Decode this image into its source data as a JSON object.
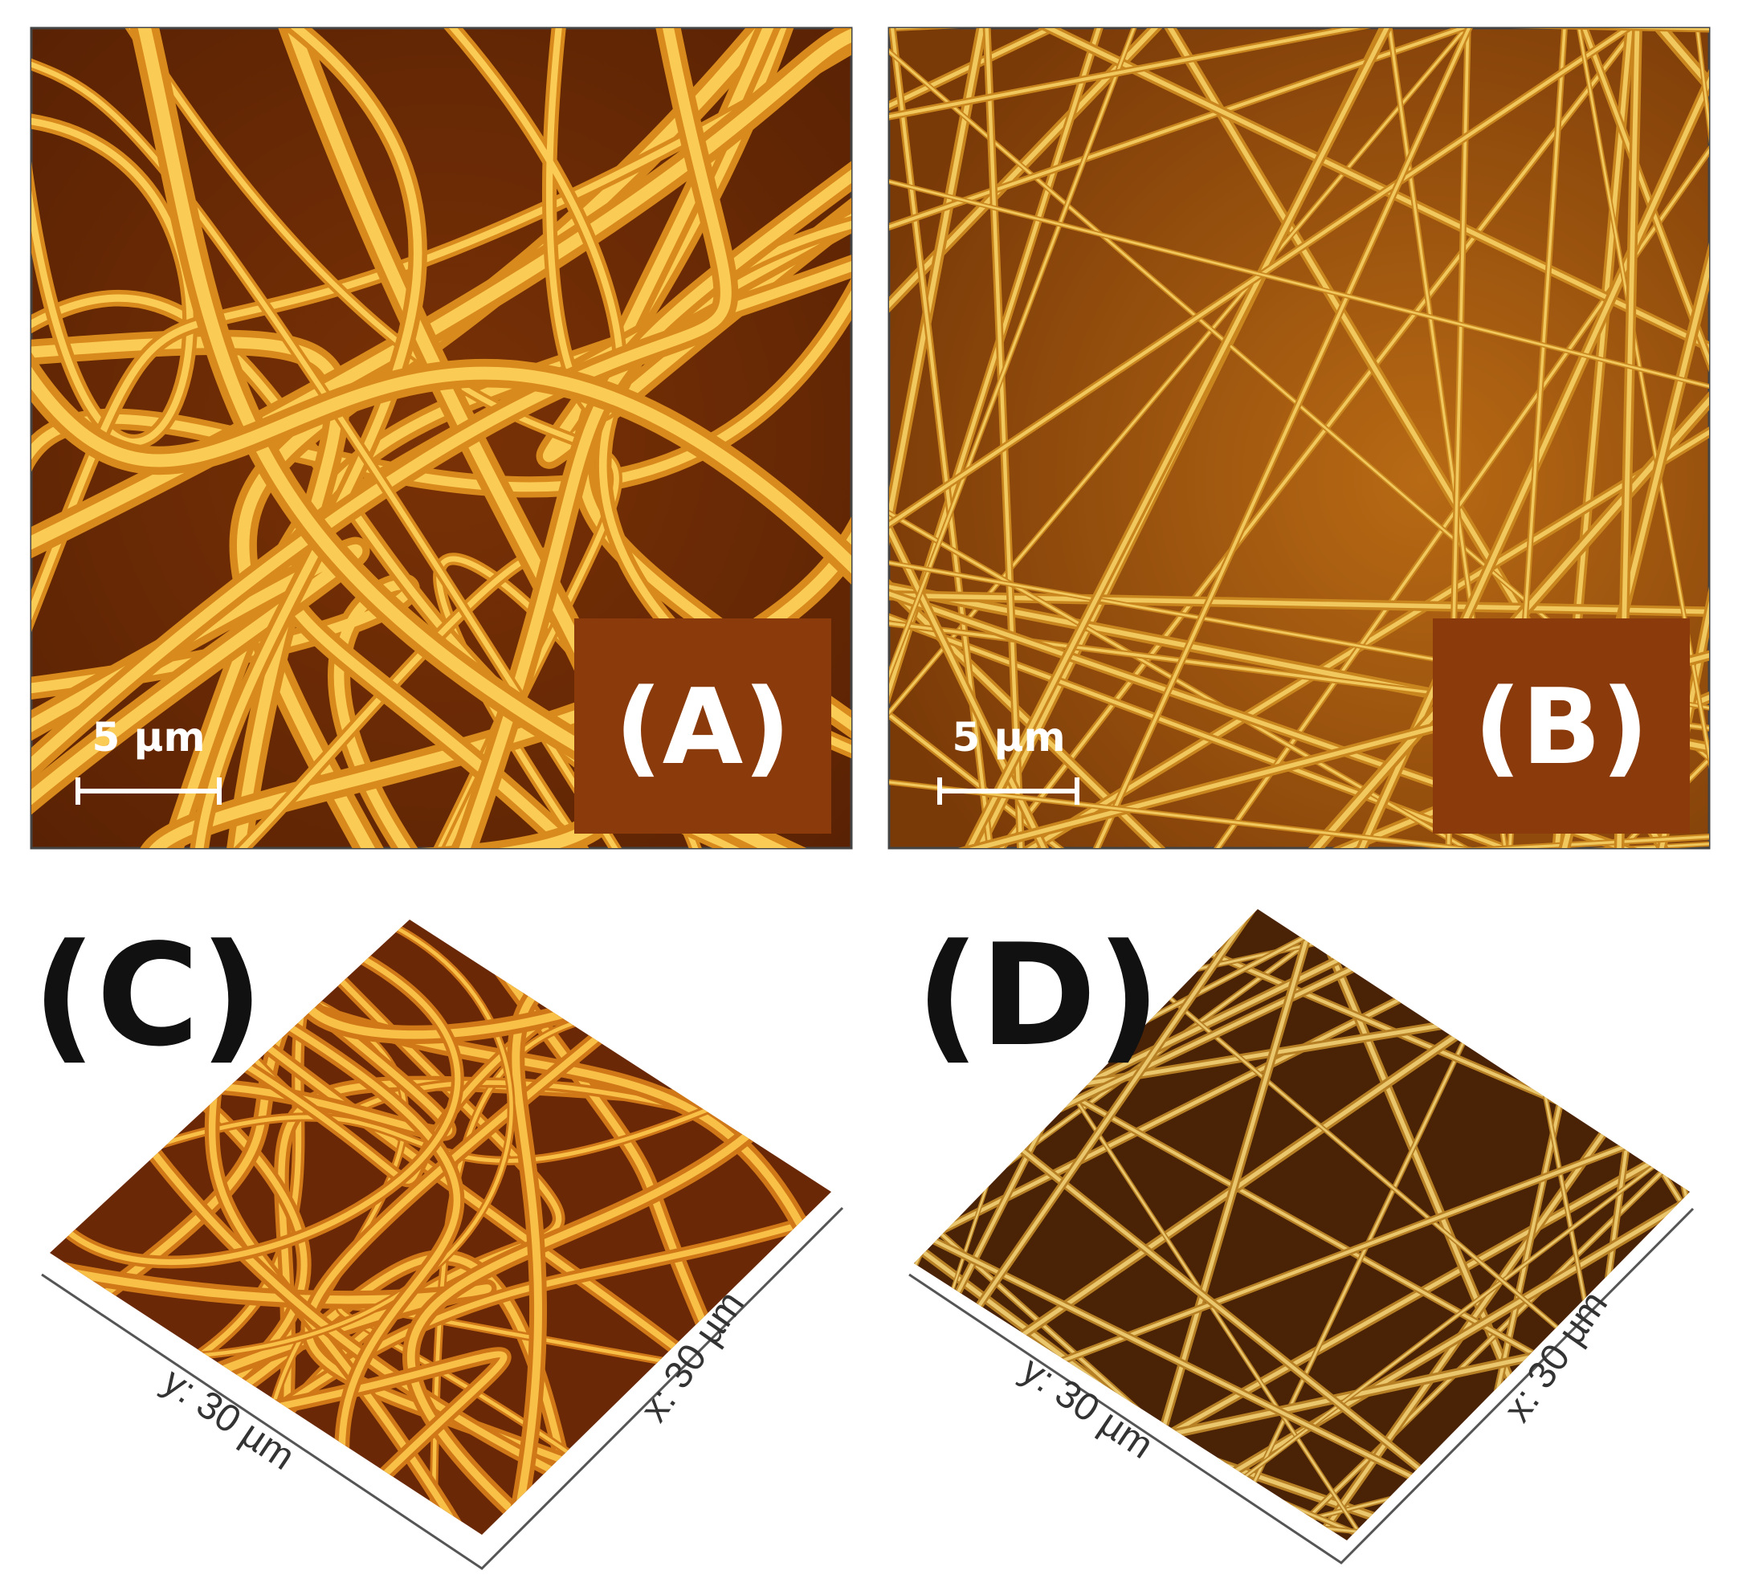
{
  "panels": [
    {
      "label": "(A)",
      "scale_bar": "5 µm"
    },
    {
      "label": "(B)",
      "scale_bar": "5 µm"
    },
    {
      "label": "(C)",
      "y_axis": "y: 30 µm",
      "x_axis": "x: 30 µm"
    },
    {
      "label": "(D)",
      "y_axis": "y: 30 µm",
      "x_axis": "x: 30 µm"
    }
  ]
}
